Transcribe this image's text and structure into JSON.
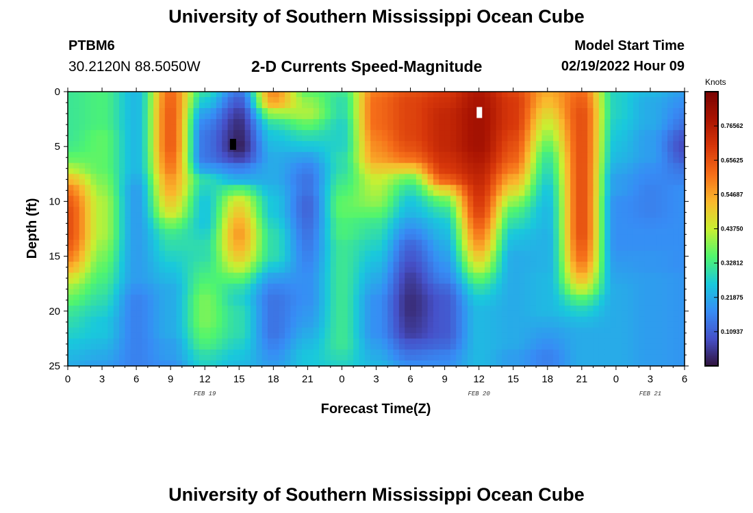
{
  "header": {
    "title": "University of Southern Mississippi Ocean Cube",
    "station_id": "PTBM6",
    "station_coords": "30.2120N  88.5050W",
    "model_start_label": "Model Start Time",
    "model_start_value": "02/19/2022 Hour 09",
    "bottom_title": "University of Southern Mississippi Ocean Cube"
  },
  "chart_data": {
    "type": "heatmap",
    "title": "2-D Currents Speed-Magnitude",
    "xlabel": "Forecast Time(Z)",
    "ylabel": "Depth (ft)",
    "xlim": [
      0,
      54
    ],
    "ylim": [
      0,
      25
    ],
    "x_tick_labels": [
      "0",
      "3",
      "6",
      "9",
      "12",
      "15",
      "18",
      "21",
      "0",
      "3",
      "6",
      "9",
      "12",
      "15",
      "18",
      "21",
      "0",
      "3",
      "6"
    ],
    "y_ticks": [
      0,
      5,
      10,
      15,
      20,
      25
    ],
    "y_tick_labels": [
      "0",
      "5",
      "10",
      "15",
      "20",
      "25"
    ],
    "date_labels": [
      {
        "text": "FEB 19",
        "hour": 12
      },
      {
        "text": "FEB 20",
        "hour": 36
      },
      {
        "text": "FEB 21",
        "hour": 51
      }
    ],
    "colorbar": {
      "title": "Knots",
      "min": 0,
      "max": 0.875,
      "ticks": [
        0.109375,
        0.21875,
        0.328125,
        0.4375,
        0.546875,
        0.65625,
        0.765625
      ],
      "tick_labels": [
        "0.10937",
        "0.21875",
        "0.32812",
        "0.43750",
        "0.54687",
        "0.65625",
        "0.76562"
      ]
    },
    "depths": [
      0,
      1,
      2,
      3,
      4,
      5,
      6,
      7,
      8,
      9,
      10,
      11,
      12,
      13,
      14,
      15,
      16,
      17,
      18,
      19,
      20,
      21,
      22,
      23,
      24,
      25
    ],
    "hours": [
      0,
      3,
      6,
      9,
      12,
      15,
      18,
      21,
      24,
      27,
      30,
      33,
      36,
      39,
      42,
      45,
      48,
      51,
      54
    ],
    "speed": [
      [
        0.32,
        0.34,
        0.24,
        0.62,
        0.3,
        0.14,
        0.58,
        0.36,
        0.32,
        0.6,
        0.66,
        0.7,
        0.78,
        0.68,
        0.54,
        0.62,
        0.28,
        0.24,
        0.2
      ],
      [
        0.32,
        0.34,
        0.24,
        0.63,
        0.26,
        0.1,
        0.55,
        0.4,
        0.3,
        0.62,
        0.68,
        0.72,
        0.79,
        0.7,
        0.52,
        0.64,
        0.28,
        0.22,
        0.18
      ],
      [
        0.32,
        0.34,
        0.24,
        0.64,
        0.2,
        0.06,
        0.4,
        0.42,
        0.3,
        0.62,
        0.68,
        0.74,
        0.8,
        0.7,
        0.48,
        0.66,
        0.28,
        0.22,
        0.16
      ],
      [
        0.32,
        0.34,
        0.24,
        0.64,
        0.16,
        0.04,
        0.3,
        0.36,
        0.28,
        0.62,
        0.68,
        0.74,
        0.8,
        0.7,
        0.44,
        0.66,
        0.27,
        0.22,
        0.14
      ],
      [
        0.32,
        0.36,
        0.24,
        0.64,
        0.14,
        0.03,
        0.26,
        0.3,
        0.28,
        0.6,
        0.68,
        0.74,
        0.8,
        0.68,
        0.4,
        0.66,
        0.26,
        0.2,
        0.1
      ],
      [
        0.33,
        0.36,
        0.24,
        0.64,
        0.14,
        0.02,
        0.24,
        0.26,
        0.28,
        0.58,
        0.66,
        0.74,
        0.8,
        0.66,
        0.36,
        0.66,
        0.25,
        0.2,
        0.08
      ],
      [
        0.36,
        0.36,
        0.24,
        0.62,
        0.14,
        0.06,
        0.22,
        0.2,
        0.3,
        0.56,
        0.62,
        0.72,
        0.78,
        0.64,
        0.32,
        0.66,
        0.24,
        0.2,
        0.1
      ],
      [
        0.42,
        0.36,
        0.24,
        0.6,
        0.2,
        0.16,
        0.22,
        0.16,
        0.3,
        0.5,
        0.5,
        0.7,
        0.76,
        0.6,
        0.3,
        0.66,
        0.22,
        0.18,
        0.14
      ],
      [
        0.52,
        0.38,
        0.22,
        0.56,
        0.3,
        0.22,
        0.22,
        0.14,
        0.32,
        0.44,
        0.36,
        0.64,
        0.74,
        0.54,
        0.28,
        0.66,
        0.2,
        0.17,
        0.16
      ],
      [
        0.6,
        0.4,
        0.2,
        0.54,
        0.28,
        0.36,
        0.24,
        0.14,
        0.34,
        0.42,
        0.3,
        0.48,
        0.72,
        0.48,
        0.26,
        0.66,
        0.2,
        0.16,
        0.18
      ],
      [
        0.64,
        0.42,
        0.2,
        0.5,
        0.26,
        0.46,
        0.26,
        0.12,
        0.36,
        0.4,
        0.26,
        0.36,
        0.7,
        0.4,
        0.25,
        0.66,
        0.18,
        0.16,
        0.18
      ],
      [
        0.66,
        0.42,
        0.2,
        0.46,
        0.26,
        0.5,
        0.26,
        0.12,
        0.36,
        0.36,
        0.24,
        0.3,
        0.68,
        0.34,
        0.24,
        0.66,
        0.18,
        0.16,
        0.18
      ],
      [
        0.66,
        0.42,
        0.2,
        0.38,
        0.26,
        0.54,
        0.28,
        0.13,
        0.34,
        0.32,
        0.2,
        0.26,
        0.64,
        0.3,
        0.24,
        0.66,
        0.18,
        0.17,
        0.18
      ],
      [
        0.66,
        0.42,
        0.2,
        0.32,
        0.28,
        0.56,
        0.3,
        0.14,
        0.34,
        0.3,
        0.16,
        0.24,
        0.6,
        0.26,
        0.23,
        0.66,
        0.18,
        0.18,
        0.18
      ],
      [
        0.64,
        0.4,
        0.2,
        0.3,
        0.3,
        0.54,
        0.3,
        0.15,
        0.32,
        0.28,
        0.12,
        0.22,
        0.56,
        0.24,
        0.23,
        0.64,
        0.18,
        0.18,
        0.18
      ],
      [
        0.6,
        0.38,
        0.2,
        0.28,
        0.3,
        0.5,
        0.3,
        0.16,
        0.32,
        0.26,
        0.1,
        0.2,
        0.5,
        0.22,
        0.23,
        0.62,
        0.19,
        0.19,
        0.18
      ],
      [
        0.54,
        0.36,
        0.2,
        0.26,
        0.32,
        0.44,
        0.26,
        0.17,
        0.32,
        0.24,
        0.08,
        0.18,
        0.44,
        0.22,
        0.23,
        0.58,
        0.2,
        0.19,
        0.18
      ],
      [
        0.46,
        0.34,
        0.2,
        0.24,
        0.34,
        0.36,
        0.2,
        0.18,
        0.32,
        0.22,
        0.06,
        0.16,
        0.36,
        0.22,
        0.24,
        0.52,
        0.21,
        0.2,
        0.19
      ],
      [
        0.4,
        0.32,
        0.18,
        0.22,
        0.36,
        0.3,
        0.16,
        0.18,
        0.32,
        0.2,
        0.05,
        0.12,
        0.3,
        0.22,
        0.24,
        0.44,
        0.22,
        0.2,
        0.19
      ],
      [
        0.36,
        0.3,
        0.16,
        0.22,
        0.38,
        0.28,
        0.14,
        0.18,
        0.32,
        0.18,
        0.04,
        0.1,
        0.26,
        0.22,
        0.24,
        0.34,
        0.22,
        0.2,
        0.19
      ],
      [
        0.32,
        0.28,
        0.16,
        0.22,
        0.38,
        0.3,
        0.14,
        0.19,
        0.32,
        0.18,
        0.04,
        0.1,
        0.24,
        0.22,
        0.24,
        0.28,
        0.22,
        0.2,
        0.19
      ],
      [
        0.3,
        0.26,
        0.16,
        0.22,
        0.38,
        0.3,
        0.14,
        0.2,
        0.32,
        0.18,
        0.05,
        0.1,
        0.24,
        0.22,
        0.22,
        0.24,
        0.22,
        0.2,
        0.19
      ],
      [
        0.28,
        0.26,
        0.16,
        0.22,
        0.36,
        0.3,
        0.14,
        0.22,
        0.32,
        0.18,
        0.06,
        0.1,
        0.24,
        0.22,
        0.2,
        0.22,
        0.22,
        0.2,
        0.19
      ],
      [
        0.26,
        0.24,
        0.16,
        0.2,
        0.34,
        0.28,
        0.16,
        0.24,
        0.32,
        0.2,
        0.1,
        0.12,
        0.24,
        0.22,
        0.18,
        0.22,
        0.22,
        0.2,
        0.19
      ],
      [
        0.24,
        0.22,
        0.16,
        0.2,
        0.3,
        0.26,
        0.18,
        0.26,
        0.3,
        0.22,
        0.14,
        0.16,
        0.24,
        0.2,
        0.16,
        0.22,
        0.22,
        0.2,
        0.19
      ],
      [
        0.22,
        0.2,
        0.16,
        0.18,
        0.28,
        0.24,
        0.2,
        0.26,
        0.28,
        0.24,
        0.18,
        0.18,
        0.24,
        0.2,
        0.16,
        0.22,
        0.22,
        0.2,
        0.19
      ]
    ]
  }
}
